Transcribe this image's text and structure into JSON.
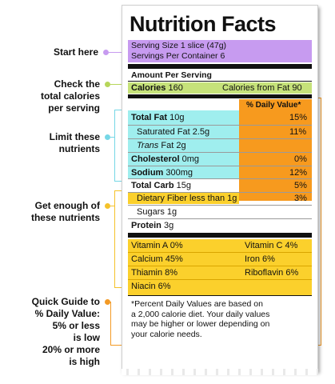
{
  "title": "Nutrition Facts",
  "annotations": {
    "start": "Start here",
    "calories": [
      "Check the",
      "total calories",
      "per serving"
    ],
    "limit": [
      "Limit these",
      "nutrients"
    ],
    "enough": [
      "Get enough of",
      "these nutrients"
    ],
    "guide": [
      "Quick Guide to",
      "% Daily Value:",
      "5% or less",
      "is low",
      "20% or more",
      "is high"
    ]
  },
  "serving": {
    "size": "Serving Size 1 slice (47g)",
    "per_container": "Servings Per Container 6"
  },
  "amount_header": "Amount Per Serving",
  "calories": {
    "label": "Calories",
    "value": "160",
    "fat_label": "Calories from Fat",
    "fat_value": "90"
  },
  "dv_header": "% Daily Value*",
  "nutrients": [
    {
      "name": "Total Fat",
      "amount": "10g",
      "dv": "15%"
    },
    {
      "name": "Saturated Fat",
      "amount": "2.5g",
      "dv": "11%"
    },
    {
      "name": "Trans",
      "name_rest": "Fat",
      "amount": "2g",
      "dv": ""
    },
    {
      "name": "Cholesterol",
      "amount": "0mg",
      "dv": "0%"
    },
    {
      "name": "Sodium",
      "amount": "300mg",
      "dv": "12%"
    },
    {
      "name": "Total Carb",
      "amount": "15g",
      "dv": "5%"
    },
    {
      "name": "Dietary Fiber",
      "amount": "less than 1g",
      "dv": "3%"
    },
    {
      "name": "Sugars",
      "amount": "1g",
      "dv": ""
    },
    {
      "name": "Protein",
      "amount": "3g",
      "dv": ""
    }
  ],
  "vitamins": [
    {
      "left": "Vitamin A 0%",
      "right": "Vitamin C 4%"
    },
    {
      "left": "Calcium 45%",
      "right": "Iron 6%"
    },
    {
      "left": "Thiamin 8%",
      "right": "Riboflavin 6%"
    },
    {
      "left": "Niacin 6%",
      "right": ""
    }
  ],
  "footnote": [
    "*Percent Daily Values are based on",
    "a 2,000 calorie diet. Your daily values",
    "may be higher or lower depending on",
    "your calorie needs."
  ],
  "colors": {
    "purple": "#c79bf0",
    "green": "#c6e27a",
    "cyan": "#9feeee",
    "orange": "#f79a1e",
    "yellow": "#fbd02c",
    "dot_purple": "#c79bf0",
    "dot_green": "#b7d65a",
    "dot_cyan": "#76d7e6",
    "dot_yellow": "#f5c22a",
    "dot_orange": "#f39a25"
  }
}
